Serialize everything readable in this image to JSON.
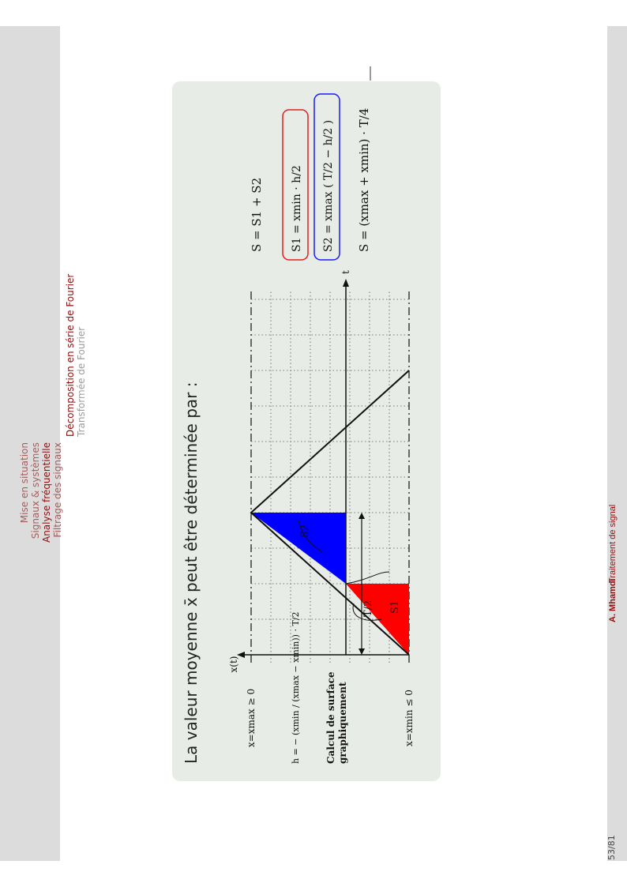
{
  "sidebar_nav": {
    "sections": [
      "Mise en situation",
      "Signaux & systèmes",
      "Analyse fréquentielle",
      "Filtrage des signaux"
    ],
    "subsections": [
      "Décomposition en série de Fourier",
      "Transformée de Fourier"
    ]
  },
  "slide": {
    "heading": "La valeur moyenne x̄ peut être déterminée par :",
    "side_caption_line1": "Calcul de surface",
    "side_caption_line2": "graphiquement",
    "labels": {
      "x_axis_label": "x(t)",
      "t_axis_label": "t",
      "xmax_label": "x=xmax ≥ 0",
      "xmin_label": "x=xmin ≤ 0",
      "h_formula": "h = − (xmin / (xmax − xmin)) · T/2",
      "half_period": "T/2",
      "s1": "S1",
      "s2": "S2"
    },
    "equations": {
      "total": "S = S1 + S2",
      "s1_eq": "S1 = xmin · h/2",
      "s2_eq": "S2 = xmax ( T/2 − h/2 )",
      "s_final": "S = (xmax + xmin) · T/4"
    },
    "colors": {
      "s1_fill": "#ff0000",
      "s2_fill": "#0000ff",
      "s1_box": "#e02020",
      "s2_box": "#1a1aff"
    }
  },
  "footer": {
    "page": "53/81",
    "author": "A. Mhamdi",
    "course": "Traitement de signal"
  }
}
